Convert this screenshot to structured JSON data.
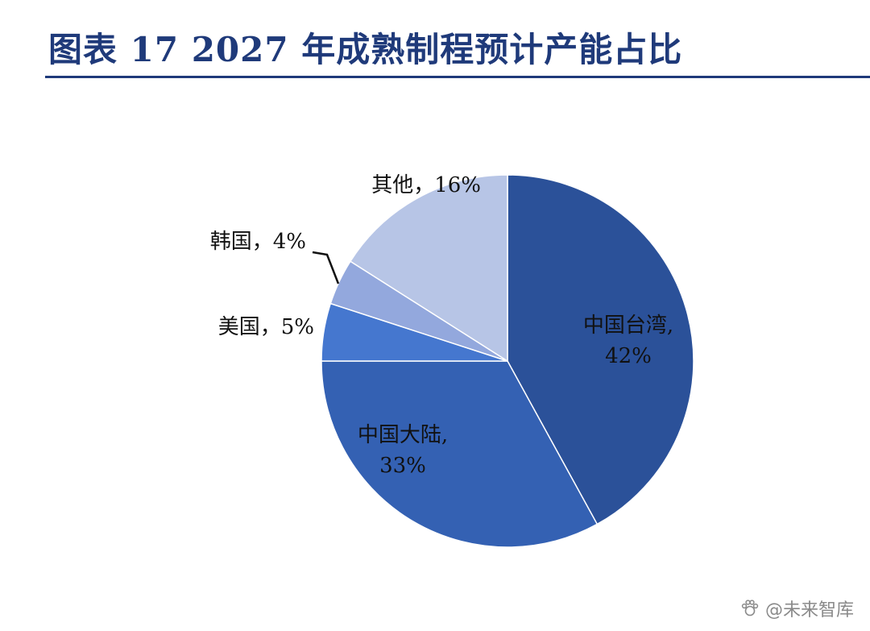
{
  "title": "图表 17 2027 年成熟制程预计产能占比",
  "watermark": "@未来智库",
  "chart_data": {
    "type": "pie",
    "title": "图表 17 2027 年成熟制程预计产能占比",
    "unit": "%",
    "slices": [
      {
        "label": "中国台湾",
        "value": 42,
        "display": "中国台湾,|42%",
        "color": "#2b5199"
      },
      {
        "label": "中国大陆",
        "value": 33,
        "display": "中国大陆,|33%",
        "color": "#3461b3"
      },
      {
        "label": "美国",
        "value": 5,
        "display": "美国，5%",
        "color": "#4577cf"
      },
      {
        "label": "韩国",
        "value": 4,
        "display": "韩国，4%",
        "color": "#93a8dd"
      },
      {
        "label": "其他",
        "value": 16,
        "display": "其他，16%",
        "color": "#b7c5e6"
      }
    ]
  }
}
